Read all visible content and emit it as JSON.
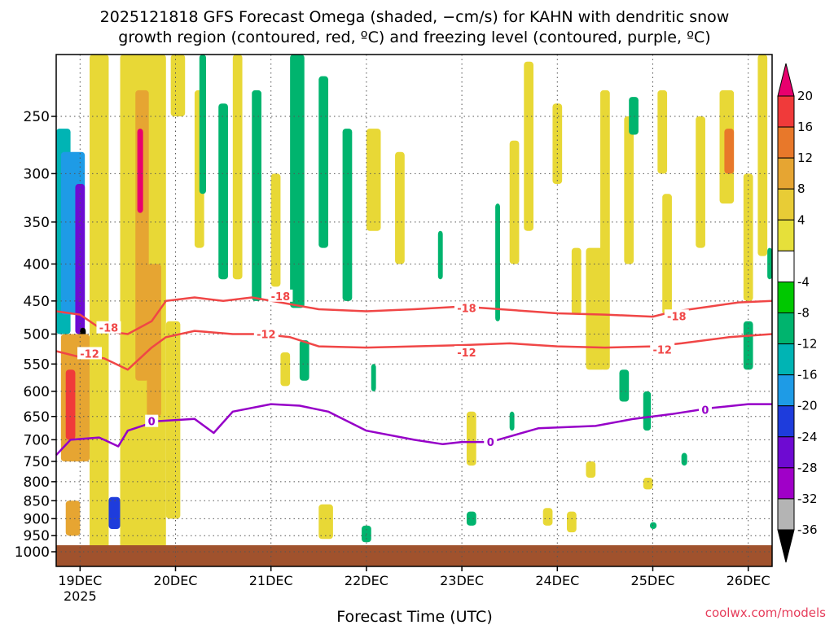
{
  "chart_data": {
    "type": "heatmap",
    "title_line1": "2025121818 GFS Forecast Omega (shaded, −cm/s) for KAHN with dendritic snow",
    "title_line2": "growth region (contoured, red, ºC) and freezing level (contoured, purple, ºC)",
    "xlabel": "Forecast Time (UTC)",
    "credit": "coolwx.com/models",
    "x_ticks": [
      {
        "label": "19DEC",
        "sublabel": "2025",
        "day": 0
      },
      {
        "label": "20DEC",
        "day": 1
      },
      {
        "label": "21DEC",
        "day": 2
      },
      {
        "label": "22DEC",
        "day": 3
      },
      {
        "label": "23DEC",
        "day": 4
      },
      {
        "label": "24DEC",
        "day": 5
      },
      {
        "label": "25DEC",
        "day": 6
      },
      {
        "label": "26DEC",
        "day": 7
      }
    ],
    "xlim_days": [
      -0.25,
      7.25
    ],
    "y_ticks": [
      "250",
      "300",
      "350",
      "400",
      "450",
      "500",
      "550",
      "600",
      "650",
      "700",
      "750",
      "800",
      "850",
      "900",
      "950",
      "1000"
    ],
    "y_tick_values": [
      250,
      300,
      350,
      400,
      450,
      500,
      550,
      600,
      650,
      700,
      750,
      800,
      850,
      900,
      950,
      1000
    ],
    "ylim_hpa": [
      200,
      1030
    ],
    "yscale": "log",
    "grid": true,
    "colorbar": {
      "labels": [
        "20",
        "16",
        "12",
        "8",
        "4",
        "-4",
        "-8",
        "-12",
        "-16",
        "-20",
        "-24",
        "-28",
        "-32",
        "-36"
      ],
      "colors": [
        "#e8006e",
        "#f03a3a",
        "#e8782a",
        "#e6a532",
        "#e8cc36",
        "#e6e03a",
        "#ffffff",
        "#00c800",
        "#00b46e",
        "#00b4b4",
        "#1e9be6",
        "#1e3cdc",
        "#6e0ad2",
        "#a000c8",
        "#b4b4b4",
        "#000000"
      ]
    },
    "colors": {
      "dgz_contour": "#f04646",
      "freezing_contour": "#9600c8",
      "ground": "#a0522d",
      "upward_weak": "#e8d836",
      "upward_moderate": "#e6a532",
      "downward": "#00c800"
    },
    "contours": [
      {
        "label": "-18",
        "points": [
          [
            -0.25,
            465
          ],
          [
            0,
            470
          ],
          [
            0.25,
            495
          ],
          [
            0.5,
            500
          ],
          [
            0.75,
            480
          ],
          [
            0.9,
            450
          ],
          [
            1.2,
            445
          ],
          [
            1.5,
            450
          ],
          [
            1.8,
            445
          ],
          [
            2.1,
            452
          ],
          [
            2.5,
            462
          ],
          [
            3,
            465
          ],
          [
            3.5,
            462
          ],
          [
            4,
            458
          ],
          [
            4.5,
            463
          ],
          [
            5,
            468
          ],
          [
            5.5,
            470
          ],
          [
            6,
            473
          ],
          [
            6.2,
            466
          ],
          [
            6.6,
            458
          ],
          [
            6.9,
            452
          ],
          [
            7.25,
            450
          ]
        ]
      },
      {
        "label": "-12",
        "points": [
          [
            -0.25,
            528
          ],
          [
            0,
            538
          ],
          [
            0.25,
            540
          ],
          [
            0.5,
            560
          ],
          [
            0.75,
            522
          ],
          [
            0.9,
            505
          ],
          [
            1.2,
            495
          ],
          [
            1.6,
            500
          ],
          [
            1.9,
            500
          ],
          [
            2.2,
            505
          ],
          [
            2.5,
            520
          ],
          [
            3,
            522
          ],
          [
            3.5,
            520
          ],
          [
            4,
            518
          ],
          [
            4.5,
            515
          ],
          [
            5,
            520
          ],
          [
            5.5,
            522
          ],
          [
            6,
            520
          ],
          [
            6.3,
            515
          ],
          [
            6.8,
            505
          ],
          [
            7.25,
            500
          ]
        ]
      },
      {
        "label": "0",
        "points": [
          [
            -0.25,
            735
          ],
          [
            -0.1,
            700
          ],
          [
            0.2,
            695
          ],
          [
            0.4,
            715
          ],
          [
            0.5,
            680
          ],
          [
            0.8,
            660
          ],
          [
            1.2,
            655
          ],
          [
            1.4,
            685
          ],
          [
            1.6,
            640
          ],
          [
            2,
            625
          ],
          [
            2.3,
            628
          ],
          [
            2.6,
            640
          ],
          [
            3,
            680
          ],
          [
            3.5,
            700
          ],
          [
            3.8,
            710
          ],
          [
            4,
            705
          ],
          [
            4.3,
            705
          ],
          [
            4.8,
            675
          ],
          [
            5.4,
            670
          ],
          [
            5.8,
            655
          ],
          [
            6.2,
            645
          ],
          [
            6.6,
            633
          ],
          [
            7,
            625
          ],
          [
            7.25,
            625
          ]
        ]
      }
    ],
    "contour_label_positions": [
      {
        "value": "-18",
        "day": 0.3,
        "hpa": 490
      },
      {
        "value": "-18",
        "day": 2.1,
        "hpa": 443
      },
      {
        "value": "-18",
        "day": 4.05,
        "hpa": 460
      },
      {
        "value": "-18",
        "day": 6.25,
        "hpa": 472
      },
      {
        "value": "-12",
        "day": 0.1,
        "hpa": 532
      },
      {
        "value": "-12",
        "day": 1.95,
        "hpa": 500
      },
      {
        "value": "-12",
        "day": 4.05,
        "hpa": 530
      },
      {
        "value": "-12",
        "day": 6.1,
        "hpa": 525
      },
      {
        "value": "0",
        "day": 0.75,
        "hpa": 660
      },
      {
        "value": "0",
        "day": 4.3,
        "hpa": 705
      },
      {
        "value": "0",
        "day": 6.55,
        "hpa": 636
      }
    ],
    "shaded_patches": [
      {
        "d0": -0.25,
        "d1": -0.1,
        "p0": 260,
        "p1": 500,
        "v": -12
      },
      {
        "d0": -0.2,
        "d1": 0.05,
        "p0": 280,
        "p1": 470,
        "v": -16
      },
      {
        "d0": -0.05,
        "d1": 0.05,
        "p0": 310,
        "p1": 500,
        "v": -24
      },
      {
        "d0": 0.0,
        "d1": 0.06,
        "p0": 490,
        "p1": 590,
        "v": -36
      },
      {
        "d0": -0.2,
        "d1": 0.1,
        "p0": 500,
        "p1": 750,
        "v": 8
      },
      {
        "d0": -0.15,
        "d1": -0.05,
        "p0": 560,
        "p1": 700,
        "v": 16
      },
      {
        "d0": -0.15,
        "d1": 0.0,
        "p0": 850,
        "p1": 950,
        "v": 8
      },
      {
        "d0": 0.1,
        "d1": 0.3,
        "p0": 200,
        "p1": 1000,
        "v": 4
      },
      {
        "d0": 0.3,
        "d1": 0.42,
        "p0": 840,
        "p1": 930,
        "v": -20
      },
      {
        "d0": 0.42,
        "d1": 0.9,
        "p0": 200,
        "p1": 1000,
        "v": 4
      },
      {
        "d0": 0.58,
        "d1": 0.72,
        "p0": 230,
        "p1": 580,
        "v": 8
      },
      {
        "d0": 0.6,
        "d1": 0.66,
        "p0": 260,
        "p1": 340,
        "v": 20
      },
      {
        "d0": 0.7,
        "d1": 0.85,
        "p0": 400,
        "p1": 650,
        "v": 8
      },
      {
        "d0": 0.9,
        "d1": 1.05,
        "p0": 480,
        "p1": 900,
        "v": 4
      },
      {
        "d0": 0.95,
        "d1": 1.1,
        "p0": 200,
        "p1": 250,
        "v": 4
      },
      {
        "d0": 1.2,
        "d1": 1.3,
        "p0": 230,
        "p1": 380,
        "v": 4
      },
      {
        "d0": 1.25,
        "d1": 1.32,
        "p0": 200,
        "p1": 320,
        "v": -8
      },
      {
        "d0": 1.45,
        "d1": 1.55,
        "p0": 240,
        "p1": 420,
        "v": -8
      },
      {
        "d0": 1.6,
        "d1": 1.7,
        "p0": 200,
        "p1": 420,
        "v": 4
      },
      {
        "d0": 1.8,
        "d1": 1.9,
        "p0": 230,
        "p1": 450,
        "v": -8
      },
      {
        "d0": 2.0,
        "d1": 2.1,
        "p0": 300,
        "p1": 430,
        "v": 4
      },
      {
        "d0": 2.2,
        "d1": 2.35,
        "p0": 200,
        "p1": 460,
        "v": -8
      },
      {
        "d0": 2.1,
        "d1": 2.2,
        "p0": 530,
        "p1": 590,
        "v": 4
      },
      {
        "d0": 2.3,
        "d1": 2.4,
        "p0": 510,
        "p1": 580,
        "v": -8
      },
      {
        "d0": 2.5,
        "d1": 2.6,
        "p0": 220,
        "p1": 380,
        "v": -8
      },
      {
        "d0": 2.5,
        "d1": 2.65,
        "p0": 860,
        "p1": 960,
        "v": 4
      },
      {
        "d0": 2.75,
        "d1": 2.85,
        "p0": 260,
        "p1": 450,
        "v": -8
      },
      {
        "d0": 3.0,
        "d1": 3.15,
        "p0": 260,
        "p1": 360,
        "v": 4
      },
      {
        "d0": 3.3,
        "d1": 3.4,
        "p0": 280,
        "p1": 400,
        "v": 4
      },
      {
        "d0": 2.95,
        "d1": 3.05,
        "p0": 920,
        "p1": 970,
        "v": -8
      },
      {
        "d0": 3.05,
        "d1": 3.1,
        "p0": 550,
        "p1": 600,
        "v": -8
      },
      {
        "d0": 3.75,
        "d1": 3.8,
        "p0": 360,
        "p1": 420,
        "v": -8
      },
      {
        "d0": 4.05,
        "d1": 4.15,
        "p0": 640,
        "p1": 760,
        "v": 4
      },
      {
        "d0": 4.05,
        "d1": 4.15,
        "p0": 880,
        "p1": 920,
        "v": -8
      },
      {
        "d0": 4.35,
        "d1": 4.4,
        "p0": 330,
        "p1": 480,
        "v": -8
      },
      {
        "d0": 4.5,
        "d1": 4.6,
        "p0": 270,
        "p1": 400,
        "v": 4
      },
      {
        "d0": 4.5,
        "d1": 4.55,
        "p0": 640,
        "p1": 680,
        "v": -8
      },
      {
        "d0": 4.65,
        "d1": 4.75,
        "p0": 210,
        "p1": 360,
        "v": 4
      },
      {
        "d0": 4.85,
        "d1": 4.95,
        "p0": 870,
        "p1": 920,
        "v": 4
      },
      {
        "d0": 4.95,
        "d1": 5.05,
        "p0": 240,
        "p1": 310,
        "v": 4
      },
      {
        "d0": 5.15,
        "d1": 5.25,
        "p0": 380,
        "p1": 470,
        "v": 4
      },
      {
        "d0": 5.1,
        "d1": 5.2,
        "p0": 880,
        "p1": 940,
        "v": 4
      },
      {
        "d0": 5.3,
        "d1": 5.5,
        "p0": 380,
        "p1": 560,
        "v": 4
      },
      {
        "d0": 5.3,
        "d1": 5.4,
        "p0": 750,
        "p1": 790,
        "v": 4
      },
      {
        "d0": 5.45,
        "d1": 5.55,
        "p0": 230,
        "p1": 560,
        "v": 4
      },
      {
        "d0": 5.7,
        "d1": 5.8,
        "p0": 250,
        "p1": 400,
        "v": 4
      },
      {
        "d0": 5.65,
        "d1": 5.75,
        "p0": 560,
        "p1": 620,
        "v": -8
      },
      {
        "d0": 5.75,
        "d1": 5.85,
        "p0": 235,
        "p1": 265,
        "v": -8
      },
      {
        "d0": 5.9,
        "d1": 5.98,
        "p0": 600,
        "p1": 680,
        "v": -8
      },
      {
        "d0": 5.9,
        "d1": 6.0,
        "p0": 790,
        "p1": 820,
        "v": 4
      },
      {
        "d0": 5.97,
        "d1": 6.04,
        "p0": 910,
        "p1": 930,
        "v": -8
      },
      {
        "d0": 6.1,
        "d1": 6.2,
        "p0": 320,
        "p1": 470,
        "v": 4
      },
      {
        "d0": 6.05,
        "d1": 6.15,
        "p0": 230,
        "p1": 300,
        "v": 4
      },
      {
        "d0": 6.3,
        "d1": 6.36,
        "p0": 730,
        "p1": 760,
        "v": -8
      },
      {
        "d0": 6.45,
        "d1": 6.55,
        "p0": 250,
        "p1": 380,
        "v": 4
      },
      {
        "d0": 6.7,
        "d1": 6.85,
        "p0": 230,
        "p1": 330,
        "v": 4
      },
      {
        "d0": 6.75,
        "d1": 6.85,
        "p0": 260,
        "p1": 300,
        "v": 12
      },
      {
        "d0": 6.95,
        "d1": 7.05,
        "p0": 300,
        "p1": 450,
        "v": 4
      },
      {
        "d0": 6.95,
        "d1": 7.05,
        "p0": 480,
        "p1": 560,
        "v": -8
      },
      {
        "d0": 7.1,
        "d1": 7.2,
        "p0": 200,
        "p1": 390,
        "v": 4
      },
      {
        "d0": 7.2,
        "d1": 7.25,
        "p0": 380,
        "p1": 420,
        "v": -8
      }
    ]
  }
}
